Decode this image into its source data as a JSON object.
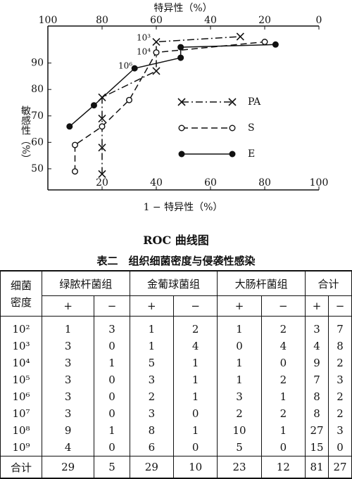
{
  "chart_data": {
    "type": "line",
    "x_label": "1 − 特异性（%）",
    "top_x_label": "特异性（%）",
    "y_label": "敏感性（%）",
    "xlim": [
      0,
      100
    ],
    "xticks": [
      20,
      40,
      60,
      80,
      100
    ],
    "top_xlim": [
      100,
      0
    ],
    "top_xticks": [
      100,
      80,
      60,
      40,
      20,
      0
    ],
    "ylim": [
      42,
      104
    ],
    "yticks": [
      50,
      60,
      70,
      80,
      90
    ],
    "legend": "right",
    "series": [
      {
        "name": "PA",
        "color": "#111111",
        "line_style": "dash-dot",
        "marker": "x",
        "x": [
          20,
          20,
          20,
          20,
          40,
          40,
          71
        ],
        "values": [
          48,
          58,
          69,
          77,
          87,
          98,
          100
        ]
      },
      {
        "name": "S",
        "color": "#111111",
        "line_style": "dashed",
        "marker": "circle-open",
        "x": [
          10,
          10,
          20,
          30,
          40,
          80
        ],
        "values": [
          49,
          59,
          66,
          76,
          94,
          98
        ]
      },
      {
        "name": "E",
        "color": "#111111",
        "line_style": "solid",
        "marker": "circle-filled",
        "x": [
          8,
          17,
          32,
          49,
          49,
          84
        ],
        "values": [
          66,
          74,
          88,
          92,
          96,
          97
        ]
      }
    ],
    "annotations": [
      "10³",
      "10⁴",
      "10⁶"
    ]
  },
  "caption": "ROC 曲线图",
  "table": {
    "title": "表二　组织细菌密度与侵袭性感染",
    "row_header": [
      "细菌",
      "密度"
    ],
    "groups": [
      "绿脓杆菌组",
      "金葡球菌组",
      "大肠杆菌组",
      "合计"
    ],
    "signs": [
      "+",
      "−"
    ],
    "rows": [
      [
        "10²",
        1,
        3,
        1,
        2,
        1,
        2,
        3,
        7
      ],
      [
        "10³",
        3,
        0,
        1,
        4,
        0,
        4,
        4,
        8
      ],
      [
        "10⁴",
        3,
        1,
        5,
        1,
        1,
        0,
        9,
        2
      ],
      [
        "10⁵",
        3,
        0,
        3,
        1,
        1,
        2,
        7,
        3
      ],
      [
        "10⁶",
        3,
        0,
        2,
        1,
        3,
        1,
        8,
        2
      ],
      [
        "10⁷",
        3,
        0,
        3,
        0,
        2,
        2,
        8,
        2
      ],
      [
        "10⁸",
        9,
        1,
        8,
        1,
        10,
        1,
        27,
        3
      ],
      [
        "10⁹",
        4,
        0,
        6,
        0,
        5,
        0,
        15,
        0
      ]
    ],
    "total": [
      "合计",
      29,
      5,
      29,
      10,
      23,
      12,
      81,
      27
    ]
  }
}
